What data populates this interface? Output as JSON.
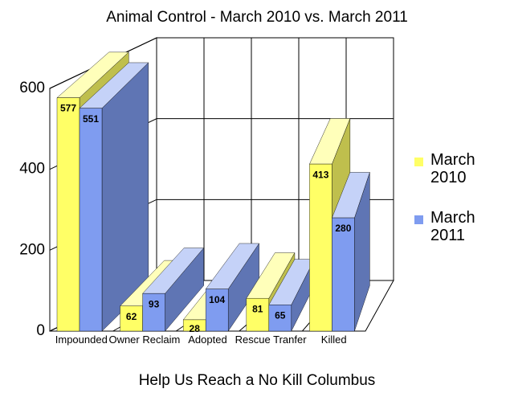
{
  "chart_data": {
    "type": "bar3d",
    "title": "Animal Control - March 2010 vs. March 2011",
    "xlabel": "Help Us Reach a No Kill Columbus",
    "categories": [
      "Impounded",
      "Owner Reclaim",
      "Adopted",
      "Rescue Tranfer",
      "Killed"
    ],
    "series": [
      {
        "name": "March 2010",
        "color": "#ffff66",
        "values": [
          577,
          62,
          28,
          81,
          413
        ]
      },
      {
        "name": "March 2011",
        "color": "#7f9cf0",
        "values": [
          551,
          93,
          104,
          65,
          280
        ]
      }
    ],
    "ylim": [
      0,
      600
    ],
    "yticks": [
      0,
      200,
      400,
      600
    ],
    "grid": true,
    "legend": "right"
  }
}
